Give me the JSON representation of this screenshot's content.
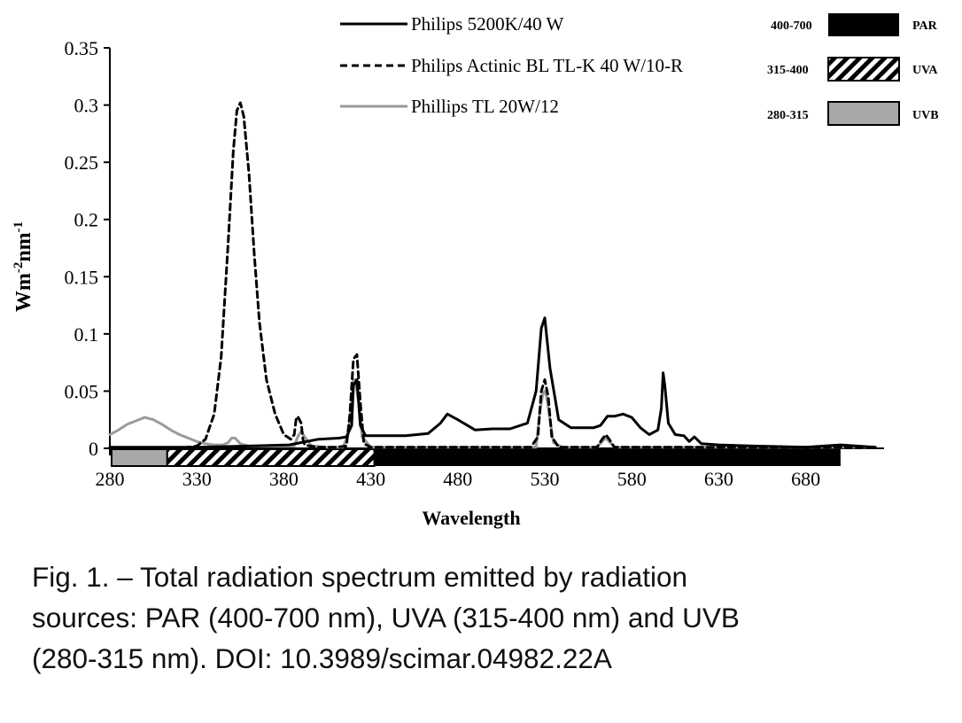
{
  "chart_data": {
    "type": "line",
    "title": "",
    "xlabel": "Wavelength",
    "ylabel_base": "Wm",
    "ylabel_sup1": "-2",
    "ylabel_mid": "nm",
    "ylabel_sup2": "-1",
    "xlim": [
      280,
      725
    ],
    "ylim": [
      0,
      0.35
    ],
    "x_ticks": [
      280,
      330,
      380,
      430,
      480,
      530,
      580,
      630,
      680
    ],
    "x_tick_labels": [
      "280",
      "330",
      "380",
      "430",
      "480",
      "530",
      "580",
      "630",
      "680"
    ],
    "y_ticks": [
      0,
      0.05,
      0.1,
      0.15,
      0.2,
      0.25,
      0.3,
      0.35
    ],
    "y_tick_labels": [
      "0",
      "0.05",
      "0.1",
      "0.15",
      "0.2",
      "0.25",
      "0.3",
      "0.35"
    ],
    "grid": false,
    "legend_position": "top",
    "series": [
      {
        "name": "Philips 5200K/40 W",
        "color": "#000000",
        "dash": "solid",
        "x": [
          280,
          300,
          330,
          360,
          383,
          390,
          400,
          412,
          416,
          419,
          420,
          422,
          424,
          427,
          432,
          450,
          463,
          470,
          474,
          480,
          490,
          500,
          510,
          520,
          525,
          528,
          530,
          533,
          538,
          545,
          558,
          562,
          566,
          570,
          575,
          580,
          585,
          590,
          595,
          597,
          598,
          599,
          601,
          605,
          610,
          613,
          616,
          620,
          630,
          650,
          680,
          700,
          720
        ],
        "y": [
          0.001,
          0.001,
          0.001,
          0.002,
          0.003,
          0.005,
          0.008,
          0.009,
          0.01,
          0.02,
          0.055,
          0.06,
          0.02,
          0.011,
          0.011,
          0.011,
          0.013,
          0.022,
          0.03,
          0.025,
          0.016,
          0.017,
          0.017,
          0.022,
          0.05,
          0.105,
          0.114,
          0.07,
          0.025,
          0.018,
          0.018,
          0.02,
          0.028,
          0.028,
          0.03,
          0.027,
          0.018,
          0.012,
          0.016,
          0.035,
          0.066,
          0.055,
          0.022,
          0.012,
          0.011,
          0.006,
          0.01,
          0.004,
          0.003,
          0.002,
          0.001,
          0.003,
          0.001
        ]
      },
      {
        "name": "Philips Actinic BL TL-K 40 W/10-R",
        "color": "#000000",
        "dash": "dashed",
        "x": [
          280,
          320,
          330,
          335,
          340,
          344,
          348,
          351,
          353,
          355,
          357,
          360,
          363,
          366,
          370,
          375,
          380,
          384,
          386,
          387,
          388,
          390,
          391,
          392,
          395,
          400,
          410,
          416,
          418,
          420,
          422,
          424,
          426,
          430,
          450,
          500,
          522,
          526,
          528,
          530,
          532,
          534,
          538,
          550,
          560,
          563,
          565,
          567,
          570,
          600,
          650,
          700,
          720
        ],
        "y": [
          0,
          0,
          0.002,
          0.008,
          0.03,
          0.08,
          0.18,
          0.26,
          0.295,
          0.302,
          0.29,
          0.24,
          0.17,
          0.11,
          0.06,
          0.03,
          0.012,
          0.008,
          0.012,
          0.025,
          0.028,
          0.022,
          0.008,
          0.003,
          0.002,
          0.001,
          0.001,
          0.002,
          0.03,
          0.078,
          0.082,
          0.04,
          0.004,
          0.001,
          0.001,
          0.001,
          0.001,
          0.01,
          0.05,
          0.06,
          0.045,
          0.01,
          0.001,
          0.001,
          0.001,
          0.008,
          0.012,
          0.008,
          0.001,
          0.001,
          0.001,
          0.001,
          0.001
        ]
      },
      {
        "name": "Phillips TL 20W/12",
        "color": "#9a9a9a",
        "dash": "solid",
        "x": [
          280,
          285,
          290,
          295,
          300,
          305,
          310,
          315,
          320,
          325,
          330,
          335,
          340,
          345,
          348,
          350,
          352,
          355,
          360,
          370,
          380,
          386,
          388,
          390,
          392,
          396,
          405,
          414,
          417,
          419,
          420,
          421,
          423,
          425,
          430,
          450,
          500,
          525,
          527,
          529,
          530,
          531,
          533,
          535,
          540,
          560,
          563,
          565,
          567,
          570,
          600,
          650,
          700,
          720
        ],
        "y": [
          0.012,
          0.016,
          0.021,
          0.024,
          0.027,
          0.025,
          0.021,
          0.016,
          0.012,
          0.009,
          0.006,
          0.004,
          0.003,
          0.003,
          0.005,
          0.009,
          0.009,
          0.004,
          0.002,
          0.002,
          0.002,
          0.002,
          0.01,
          0.015,
          0.01,
          0.002,
          0.001,
          0.001,
          0.012,
          0.04,
          0.06,
          0.06,
          0.04,
          0.01,
          0.001,
          0.001,
          0.001,
          0.001,
          0.03,
          0.048,
          0.05,
          0.045,
          0.025,
          0.005,
          0.001,
          0.001,
          0.006,
          0.009,
          0.006,
          0.001,
          0.001,
          0.001,
          0.001,
          0.001
        ]
      }
    ],
    "bands": [
      {
        "name": "PAR",
        "range_label": "400-700",
        "x_start": 432,
        "x_end": 700,
        "fill": "solid"
      },
      {
        "name": "UVA",
        "range_label": "315-400",
        "x_start": 313,
        "x_end": 432,
        "fill": "hatch"
      },
      {
        "name": "UVB",
        "range_label": "280-315",
        "x_start": 281,
        "x_end": 313,
        "fill": "gray"
      }
    ]
  },
  "caption": {
    "line1": "Fig. 1. – Total radiation spectrum emitted by radiation",
    "line2": "sources: PAR (400-700 nm), UVA (315-400 nm) and UVB",
    "line3": "(280-315 nm). DOI: 10.3989/scimar.04982.22A"
  }
}
